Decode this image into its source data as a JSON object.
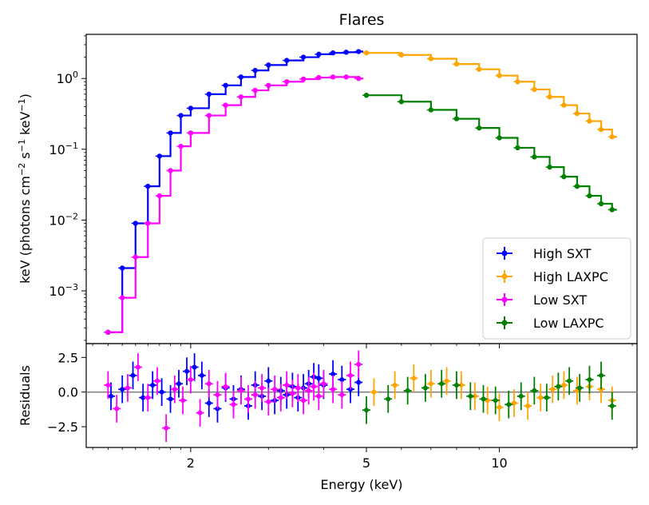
{
  "chart_data": [
    {
      "type": "scatter",
      "panel": "spectrum",
      "title": "Flares",
      "ylabel_parts": [
        "keV (photons cm",
        "−2",
        " s",
        "−1",
        " keV",
        "−1",
        ")"
      ],
      "yscale": "log",
      "xscale": "log",
      "xlim": [
        1.16,
        20.5
      ],
      "ylim": [
        0.00018,
        4.2
      ],
      "yticks": [
        {
          "value": 0.001,
          "base": "10",
          "exp": "−3"
        },
        {
          "value": 0.01,
          "base": "10",
          "exp": "−2"
        },
        {
          "value": 0.1,
          "base": "10",
          "exp": "−1"
        },
        {
          "value": 1,
          "base": "10",
          "exp": "0"
        }
      ],
      "legend": {
        "placement": "lower-right",
        "entries": [
          "High SXT",
          "High LAXPC",
          "Low SXT",
          "Low LAXPC"
        ]
      },
      "series": [
        {
          "name": "High SXT",
          "color": "#0000ff",
          "x": [
            1.3,
            1.4,
            1.5,
            1.6,
            1.7,
            1.8,
            1.9,
            2.0,
            2.2,
            2.4,
            2.6,
            2.8,
            3.0,
            3.3,
            3.6,
            3.9,
            4.2,
            4.5,
            4.8
          ],
          "y": [
            0.00026,
            0.0021,
            0.009,
            0.03,
            0.08,
            0.17,
            0.3,
            0.38,
            0.6,
            0.8,
            1.05,
            1.3,
            1.55,
            1.8,
            2.0,
            2.2,
            2.3,
            2.35,
            2.4
          ]
        },
        {
          "name": "High LAXPC",
          "color": "#ffa500",
          "x": [
            5.0,
            6.0,
            7.0,
            8.0,
            9.0,
            10.0,
            11.0,
            12.0,
            13.0,
            14.0,
            15.0,
            16.0,
            17.0,
            18.0
          ],
          "y": [
            2.3,
            2.15,
            1.9,
            1.6,
            1.35,
            1.1,
            0.9,
            0.7,
            0.55,
            0.42,
            0.32,
            0.25,
            0.19,
            0.15
          ]
        },
        {
          "name": "Low SXT",
          "color": "#ff00ff",
          "x": [
            1.3,
            1.4,
            1.5,
            1.6,
            1.7,
            1.8,
            1.9,
            2.0,
            2.2,
            2.4,
            2.6,
            2.8,
            3.0,
            3.3,
            3.6,
            3.9,
            4.2,
            4.5,
            4.8
          ],
          "y": [
            0.00026,
            0.0008,
            0.003,
            0.009,
            0.022,
            0.05,
            0.11,
            0.17,
            0.3,
            0.42,
            0.55,
            0.68,
            0.8,
            0.9,
            0.98,
            1.03,
            1.05,
            1.05,
            1.0
          ]
        },
        {
          "name": "Low LAXPC",
          "color": "#008000",
          "x": [
            5.0,
            6.0,
            7.0,
            8.0,
            9.0,
            10.0,
            11.0,
            12.0,
            13.0,
            14.0,
            15.0,
            16.0,
            17.0,
            18.0
          ],
          "y": [
            0.58,
            0.47,
            0.36,
            0.27,
            0.2,
            0.145,
            0.105,
            0.078,
            0.056,
            0.041,
            0.03,
            0.022,
            0.017,
            0.014
          ]
        }
      ]
    },
    {
      "type": "scatter",
      "panel": "residuals",
      "ylabel": "Residuals",
      "xlabel": "Energy (keV)",
      "xscale": "log",
      "xlim": [
        1.16,
        20.5
      ],
      "ylim": [
        -4.0,
        3.5
      ],
      "yticks": [
        {
          "value": 2.5,
          "label": "2.5"
        },
        {
          "value": 0.0,
          "label": "0.0"
        },
        {
          "value": -2.5,
          "label": "−2.5"
        }
      ],
      "xticks": [
        {
          "value": 2,
          "label": "2"
        },
        {
          "value": 5,
          "label": "5"
        },
        {
          "value": 10,
          "label": "10"
        }
      ],
      "reference_line": 0,
      "series": [
        {
          "name": "High SXT",
          "color": "#0000ff",
          "x": [
            1.32,
            1.4,
            1.48,
            1.56,
            1.64,
            1.72,
            1.8,
            1.88,
            1.96,
            2.04,
            2.12,
            2.2,
            2.3,
            2.4,
            2.5,
            2.6,
            2.7,
            2.8,
            2.9,
            3.0,
            3.1,
            3.2,
            3.3,
            3.4,
            3.5,
            3.6,
            3.7,
            3.8,
            3.9,
            4.0,
            4.2,
            4.4,
            4.6,
            4.8
          ],
          "y": [
            -0.3,
            0.2,
            1.2,
            -0.4,
            0.5,
            0.0,
            -0.5,
            0.6,
            1.5,
            1.8,
            1.2,
            -0.8,
            -1.2,
            0.3,
            -0.5,
            0.2,
            -1.0,
            0.5,
            -0.3,
            0.8,
            -0.6,
            0.1,
            -0.2,
            0.4,
            -0.4,
            0.3,
            0.6,
            1.1,
            1.0,
            0.5,
            1.3,
            0.9,
            0.2,
            0.7
          ]
        },
        {
          "name": "High LAXPC",
          "color": "#ffa500",
          "x": [
            5.2,
            5.8,
            6.4,
            7.0,
            7.6,
            8.2,
            8.8,
            9.4,
            10.0,
            10.8,
            11.6,
            12.4,
            13.2,
            14.0,
            15.0,
            16.0,
            17.0,
            18.0
          ],
          "y": [
            0.0,
            0.5,
            1.0,
            0.6,
            0.8,
            0.5,
            -0.3,
            -0.6,
            -1.1,
            -0.8,
            -1.0,
            -0.4,
            0.2,
            0.5,
            0.1,
            0.4,
            0.2,
            -0.6
          ]
        },
        {
          "name": "Low SXT",
          "color": "#ff00ff",
          "x": [
            1.3,
            1.36,
            1.44,
            1.52,
            1.6,
            1.68,
            1.76,
            1.84,
            1.92,
            2.0,
            2.1,
            2.2,
            2.3,
            2.4,
            2.5,
            2.6,
            2.7,
            2.8,
            2.9,
            3.0,
            3.1,
            3.2,
            3.3,
            3.4,
            3.5,
            3.6,
            3.7,
            3.8,
            3.9,
            4.0,
            4.2,
            4.4,
            4.6,
            4.8
          ],
          "y": [
            0.5,
            -1.2,
            0.3,
            1.8,
            -0.4,
            0.8,
            -2.6,
            0.2,
            -0.6,
            0.9,
            -1.5,
            0.6,
            -0.2,
            0.4,
            -0.9,
            0.1,
            -0.5,
            -0.2,
            0.3,
            -0.7,
            0.2,
            -0.4,
            0.5,
            -0.1,
            0.3,
            -0.6,
            0.1,
            0.4,
            -0.3,
            0.6,
            0.2,
            -0.2,
            1.2,
            2.0
          ]
        },
        {
          "name": "Low LAXPC",
          "color": "#008000",
          "x": [
            5.0,
            5.6,
            6.2,
            6.8,
            7.4,
            8.0,
            8.6,
            9.2,
            9.8,
            10.5,
            11.2,
            12.0,
            12.8,
            13.6,
            14.4,
            15.2,
            16.0,
            17.0,
            18.0
          ],
          "y": [
            -1.3,
            -0.5,
            0.1,
            0.3,
            0.6,
            0.5,
            -0.3,
            -0.5,
            -0.6,
            -0.9,
            -0.3,
            0.1,
            -0.4,
            0.4,
            0.8,
            0.3,
            0.9,
            1.2,
            -1.0
          ]
        }
      ]
    }
  ]
}
